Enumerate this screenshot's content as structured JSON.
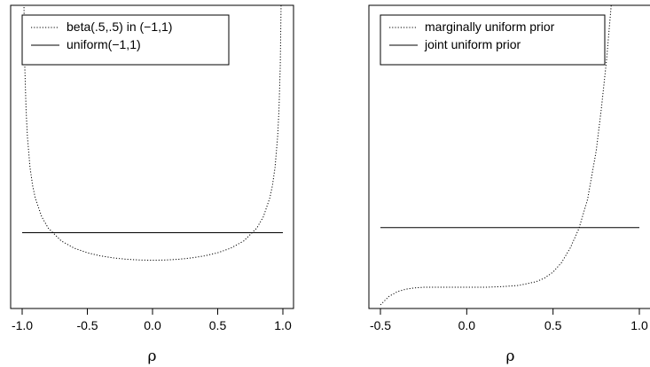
{
  "chart_data": [
    {
      "type": "line",
      "xlabel": "ρ",
      "xlim": [
        -1.0,
        1.0
      ],
      "xticks": [
        -1.0,
        -0.5,
        0.0,
        0.5,
        1.0
      ],
      "xtick_labels": [
        "-1.0",
        "-0.5",
        "0.0",
        "0.5",
        "1.0"
      ],
      "y_axis_shown": false,
      "ylim": [
        0,
        2.0
      ],
      "legend_position": "top-left",
      "series": [
        {
          "name": "beta(.5,.5) in (−1,1)",
          "style": "dotted",
          "x": [
            -0.99,
            -0.98,
            -0.97,
            -0.96,
            -0.94,
            -0.92,
            -0.9,
            -0.85,
            -0.8,
            -0.7,
            -0.6,
            -0.5,
            -0.4,
            -0.3,
            -0.2,
            -0.1,
            0.0,
            0.1,
            0.2,
            0.3,
            0.4,
            0.5,
            0.6,
            0.7,
            0.8,
            0.85,
            0.9,
            0.92,
            0.94,
            0.96,
            0.97,
            0.98,
            0.99
          ],
          "y": [
            2.2503,
            1.5995,
            1.3096,
            1.1368,
            0.9318,
            0.8118,
            0.7302,
            0.6047,
            0.5305,
            0.4457,
            0.3979,
            0.3676,
            0.3472,
            0.3337,
            0.3249,
            0.3199,
            0.3183,
            0.3199,
            0.3249,
            0.3337,
            0.3472,
            0.3676,
            0.3979,
            0.4457,
            0.5305,
            0.6047,
            0.7302,
            0.8118,
            0.9318,
            1.1368,
            1.3096,
            1.5995,
            2.2503
          ]
        },
        {
          "name": "uniform(−1,1)",
          "style": "solid",
          "x": [
            -1.0,
            1.0
          ],
          "y": [
            0.5,
            0.5
          ]
        }
      ]
    },
    {
      "type": "line",
      "xlabel": "ρ",
      "xlim": [
        -0.5,
        1.0
      ],
      "xticks": [
        -0.5,
        0.0,
        0.5,
        1.0
      ],
      "xtick_labels": [
        "-0.5",
        "0.0",
        "0.5",
        "1.0"
      ],
      "y_axis_shown": false,
      "ylim": [
        0,
        2.5
      ],
      "legend_position": "top-left",
      "series": [
        {
          "name": "marginally uniform prior",
          "style": "dotted",
          "x": [
            -0.5,
            -0.45,
            -0.4,
            -0.35,
            -0.3,
            -0.25,
            -0.2,
            -0.1,
            0.0,
            0.1,
            0.2,
            0.3,
            0.4,
            0.45,
            0.5,
            0.55,
            0.6,
            0.65,
            0.7,
            0.75,
            0.78,
            0.81,
            0.84
          ],
          "y": [
            0.03,
            0.1,
            0.14,
            0.16,
            0.17,
            0.175,
            0.175,
            0.175,
            0.175,
            0.175,
            0.18,
            0.19,
            0.22,
            0.25,
            0.3,
            0.38,
            0.5,
            0.66,
            0.9,
            1.3,
            1.65,
            2.05,
            2.55
          ]
        },
        {
          "name": "joint uniform prior",
          "style": "solid",
          "x": [
            -0.5,
            1.0
          ],
          "y": [
            0.667,
            0.667
          ]
        }
      ]
    }
  ]
}
